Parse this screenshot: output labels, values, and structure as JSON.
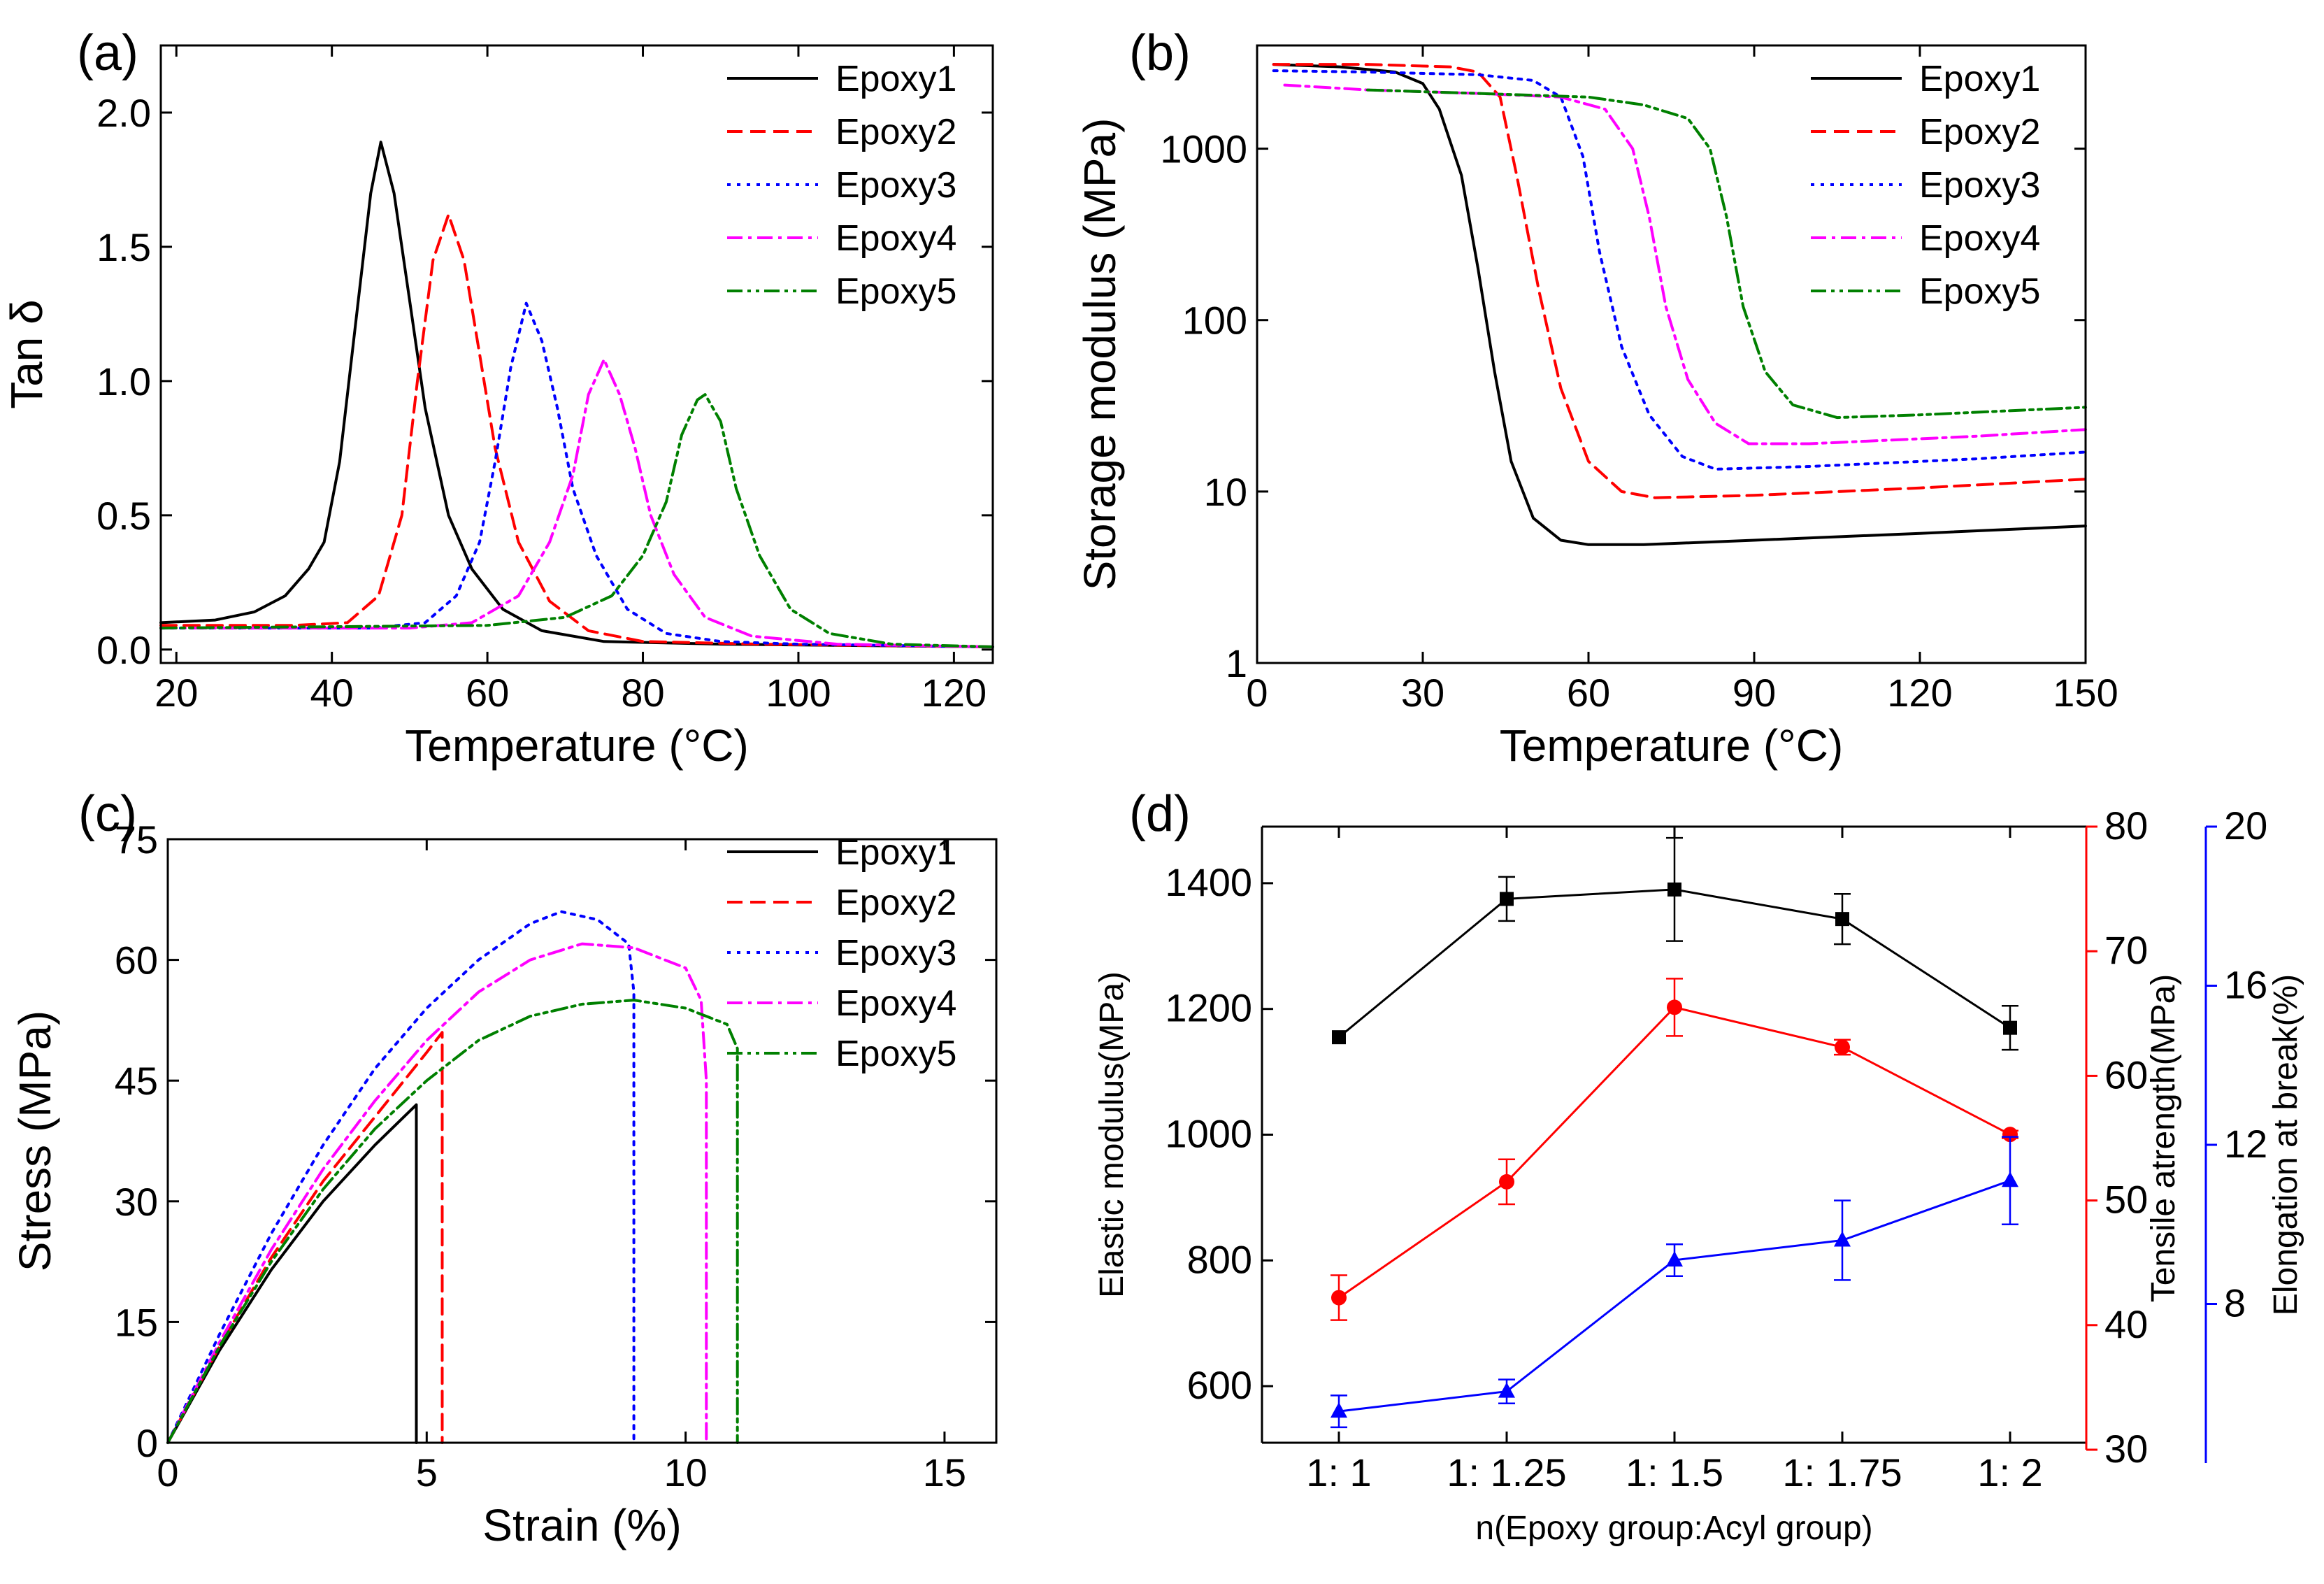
{
  "chart_data": [
    {
      "panel": "(a)",
      "type": "line",
      "xlabel": "Temperature (°C)",
      "ylabel": "Tan δ",
      "xlim": [
        18,
        125
      ],
      "ylim": [
        -0.05,
        2.25
      ],
      "xticks": [
        "20",
        "40",
        "60",
        "80",
        "100",
        "120"
      ],
      "yticks": [
        "0.0",
        "0.5",
        "1.0",
        "1.5",
        "2.0"
      ],
      "legend_position": "top-right",
      "series": [
        {
          "name": "Epoxy1",
          "color": "#000000",
          "dash": "solid",
          "points": [
            [
              18,
              0.1
            ],
            [
              25,
              0.11
            ],
            [
              30,
              0.14
            ],
            [
              34,
              0.2
            ],
            [
              37,
              0.3
            ],
            [
              39,
              0.4
            ],
            [
              41,
              0.7
            ],
            [
              43,
              1.2
            ],
            [
              45,
              1.7
            ],
            [
              46.3,
              1.89
            ],
            [
              48,
              1.7
            ],
            [
              50,
              1.3
            ],
            [
              52,
              0.9
            ],
            [
              55,
              0.5
            ],
            [
              58,
              0.3
            ],
            [
              62,
              0.15
            ],
            [
              67,
              0.07
            ],
            [
              75,
              0.03
            ],
            [
              90,
              0.02
            ],
            [
              125,
              0.01
            ]
          ]
        },
        {
          "name": "Epoxy2",
          "color": "#ff0000",
          "dash": "dashed",
          "points": [
            [
              18,
              0.09
            ],
            [
              35,
              0.09
            ],
            [
              42,
              0.1
            ],
            [
              46,
              0.2
            ],
            [
              49,
              0.5
            ],
            [
              51,
              1.0
            ],
            [
              53,
              1.45
            ],
            [
              55,
              1.62
            ],
            [
              57,
              1.45
            ],
            [
              59,
              1.1
            ],
            [
              61,
              0.75
            ],
            [
              64,
              0.4
            ],
            [
              68,
              0.18
            ],
            [
              73,
              0.07
            ],
            [
              80,
              0.03
            ],
            [
              95,
              0.02
            ],
            [
              125,
              0.01
            ]
          ]
        },
        {
          "name": "Epoxy3",
          "color": "#0000ff",
          "dash": "dotted",
          "points": [
            [
              18,
              0.08
            ],
            [
              45,
              0.08
            ],
            [
              52,
              0.1
            ],
            [
              56,
              0.2
            ],
            [
              59,
              0.4
            ],
            [
              61,
              0.7
            ],
            [
              63,
              1.05
            ],
            [
              65,
              1.29
            ],
            [
              67,
              1.15
            ],
            [
              69,
              0.9
            ],
            [
              71,
              0.6
            ],
            [
              74,
              0.35
            ],
            [
              78,
              0.15
            ],
            [
              83,
              0.06
            ],
            [
              90,
              0.03
            ],
            [
              100,
              0.02
            ],
            [
              125,
              0.01
            ]
          ]
        },
        {
          "name": "Epoxy4",
          "color": "#ff00ff",
          "dash": "dashdot",
          "points": [
            [
              18,
              0.08
            ],
            [
              50,
              0.08
            ],
            [
              58,
              0.1
            ],
            [
              64,
              0.2
            ],
            [
              68,
              0.4
            ],
            [
              71,
              0.65
            ],
            [
              73,
              0.95
            ],
            [
              75,
              1.08
            ],
            [
              77,
              0.95
            ],
            [
              79,
              0.75
            ],
            [
              81,
              0.5
            ],
            [
              84,
              0.28
            ],
            [
              88,
              0.12
            ],
            [
              94,
              0.05
            ],
            [
              105,
              0.02
            ],
            [
              125,
              0.01
            ]
          ]
        },
        {
          "name": "Epoxy5",
          "color": "#008000",
          "dash": "dashdotdot",
          "points": [
            [
              18,
              0.08
            ],
            [
              60,
              0.09
            ],
            [
              70,
              0.12
            ],
            [
              76,
              0.2
            ],
            [
              80,
              0.35
            ],
            [
              83,
              0.55
            ],
            [
              85,
              0.8
            ],
            [
              87,
              0.93
            ],
            [
              88,
              0.95
            ],
            [
              90,
              0.85
            ],
            [
              92,
              0.6
            ],
            [
              95,
              0.35
            ],
            [
              99,
              0.15
            ],
            [
              104,
              0.06
            ],
            [
              112,
              0.02
            ],
            [
              125,
              0.01
            ]
          ]
        }
      ]
    },
    {
      "panel": "(b)",
      "type": "line",
      "xlabel": "Temperature (°C)",
      "ylabel": "Storage modulus (MPa)",
      "yscale": "log",
      "xlim": [
        0,
        150
      ],
      "ylim": [
        1,
        4000
      ],
      "xticks": [
        "0",
        "30",
        "60",
        "90",
        "120",
        "150"
      ],
      "yticks": [
        "1",
        "10",
        "100",
        "1000"
      ],
      "legend_position": "top-right",
      "series": [
        {
          "name": "Epoxy1",
          "color": "#000000",
          "dash": "solid",
          "points": [
            [
              3,
              3100
            ],
            [
              15,
              3000
            ],
            [
              25,
              2800
            ],
            [
              30,
              2400
            ],
            [
              33,
              1700
            ],
            [
              37,
              700
            ],
            [
              40,
              200
            ],
            [
              43,
              50
            ],
            [
              46,
              15
            ],
            [
              50,
              7
            ],
            [
              55,
              5.2
            ],
            [
              60,
              4.9
            ],
            [
              70,
              4.9
            ],
            [
              90,
              5.2
            ],
            [
              120,
              5.7
            ],
            [
              150,
              6.3
            ]
          ]
        },
        {
          "name": "Epoxy2",
          "color": "#ff0000",
          "dash": "dashed",
          "points": [
            [
              3,
              3100
            ],
            [
              20,
              3100
            ],
            [
              35,
              3000
            ],
            [
              40,
              2800
            ],
            [
              44,
              2000
            ],
            [
              47,
              700
            ],
            [
              51,
              150
            ],
            [
              55,
              40
            ],
            [
              60,
              15
            ],
            [
              66,
              10
            ],
            [
              72,
              9.2
            ],
            [
              90,
              9.5
            ],
            [
              120,
              10.5
            ],
            [
              150,
              11.8
            ]
          ]
        },
        {
          "name": "Epoxy3",
          "color": "#0000ff",
          "dash": "dotted",
          "points": [
            [
              3,
              2850
            ],
            [
              20,
              2800
            ],
            [
              40,
              2700
            ],
            [
              50,
              2500
            ],
            [
              55,
              2000
            ],
            [
              59,
              900
            ],
            [
              62,
              250
            ],
            [
              66,
              70
            ],
            [
              71,
              28
            ],
            [
              77,
              16
            ],
            [
              83,
              13.5
            ],
            [
              100,
              14
            ],
            [
              130,
              15.5
            ],
            [
              150,
              17
            ]
          ]
        },
        {
          "name": "Epoxy4",
          "color": "#ff00ff",
          "dash": "dashdot",
          "points": [
            [
              5,
              2350
            ],
            [
              20,
              2200
            ],
            [
              40,
              2100
            ],
            [
              55,
              2000
            ],
            [
              63,
              1700
            ],
            [
              68,
              1000
            ],
            [
              71,
              400
            ],
            [
              74,
              120
            ],
            [
              78,
              45
            ],
            [
              83,
              25
            ],
            [
              89,
              19
            ],
            [
              100,
              19
            ],
            [
              130,
              21
            ],
            [
              150,
              23
            ]
          ]
        },
        {
          "name": "Epoxy5",
          "color": "#008000",
          "dash": "dashdotdot",
          "points": [
            [
              20,
              2200
            ],
            [
              40,
              2100
            ],
            [
              60,
              2000
            ],
            [
              70,
              1800
            ],
            [
              78,
              1500
            ],
            [
              82,
              1000
            ],
            [
              85,
              400
            ],
            [
              88,
              120
            ],
            [
              92,
              50
            ],
            [
              97,
              32
            ],
            [
              105,
              27
            ],
            [
              120,
              28
            ],
            [
              150,
              31
            ]
          ]
        }
      ]
    },
    {
      "panel": "(c)",
      "type": "line",
      "xlabel": "Strain (%)",
      "ylabel": "Stress (MPa)",
      "xlim": [
        0,
        16
      ],
      "ylim": [
        0,
        75
      ],
      "xticks": [
        "0",
        "5",
        "10",
        "15"
      ],
      "yticks": [
        "0",
        "15",
        "30",
        "45",
        "60",
        "75"
      ],
      "legend_position": "top-right",
      "series": [
        {
          "name": "Epoxy1",
          "color": "#000000",
          "dash": "solid",
          "points": [
            [
              0,
              0
            ],
            [
              1,
              11.5
            ],
            [
              2,
              21.5
            ],
            [
              3,
              30
            ],
            [
              4,
              37
            ],
            [
              4.8,
              42
            ],
            [
              4.8,
              0
            ]
          ]
        },
        {
          "name": "Epoxy2",
          "color": "#ff0000",
          "dash": "dashed",
          "points": [
            [
              0,
              0
            ],
            [
              1,
              12
            ],
            [
              2,
              23
            ],
            [
              3,
              32.5
            ],
            [
              4,
              40.5
            ],
            [
              5,
              48.5
            ],
            [
              5.3,
              51
            ],
            [
              5.3,
              0
            ]
          ]
        },
        {
          "name": "Epoxy3",
          "color": "#0000ff",
          "dash": "dotted",
          "points": [
            [
              0,
              0
            ],
            [
              1,
              13.5
            ],
            [
              2,
              26
            ],
            [
              3,
              37
            ],
            [
              4,
              46.5
            ],
            [
              5,
              54
            ],
            [
              6,
              60
            ],
            [
              7,
              64.5
            ],
            [
              7.6,
              66
            ],
            [
              8.3,
              65
            ],
            [
              8.9,
              62
            ],
            [
              9,
              56
            ],
            [
              9,
              0
            ]
          ]
        },
        {
          "name": "Epoxy4",
          "color": "#ff00ff",
          "dash": "dashdot",
          "points": [
            [
              0,
              0
            ],
            [
              1,
              12.5
            ],
            [
              2,
              24
            ],
            [
              3,
              34
            ],
            [
              4,
              42.5
            ],
            [
              5,
              50
            ],
            [
              6,
              56
            ],
            [
              7,
              60
            ],
            [
              8,
              62
            ],
            [
              9,
              61.5
            ],
            [
              10,
              59
            ],
            [
              10.3,
              55
            ],
            [
              10.4,
              45
            ],
            [
              10.4,
              0
            ]
          ]
        },
        {
          "name": "Epoxy5",
          "color": "#008000",
          "dash": "dashdotdot",
          "points": [
            [
              0,
              0
            ],
            [
              1,
              12
            ],
            [
              2,
              22.5
            ],
            [
              3,
              31.5
            ],
            [
              4,
              39
            ],
            [
              5,
              45
            ],
            [
              6,
              50
            ],
            [
              7,
              53
            ],
            [
              8,
              54.5
            ],
            [
              9,
              55
            ],
            [
              10,
              54
            ],
            [
              10.8,
              52
            ],
            [
              11,
              49
            ],
            [
              11,
              0
            ]
          ]
        }
      ]
    },
    {
      "panel": "(d)",
      "type": "line",
      "xlabel": "n(Epoxy group:Acyl group)",
      "categories": [
        "1: 1",
        "1: 1.25",
        "1: 1.5",
        "1: 1.75",
        "1: 2"
      ],
      "axes": [
        {
          "label": "Elastic modulus(MPa)",
          "color": "#000000",
          "lim": [
            510,
            1490
          ],
          "ticks": [
            "600",
            "800",
            "1000",
            "1200",
            "1400"
          ]
        },
        {
          "label": "Tensile atrength(MPa)",
          "color": "#ff0000",
          "lim": [
            30,
            80
          ],
          "ticks": [
            "30",
            "40",
            "50",
            "60",
            "70",
            "80"
          ]
        },
        {
          "label": "Elongation at break(%)",
          "color": "#0000ff",
          "lim": [
            4,
            20
          ],
          "ticks": [
            "8",
            "12",
            "16",
            "20"
          ]
        }
      ],
      "series": [
        {
          "name": "Elastic modulus",
          "axis": 0,
          "color": "#000000",
          "marker": "square",
          "values": [
            1155,
            1375,
            1390,
            1343,
            1170
          ],
          "errors": [
            0,
            35,
            82,
            40,
            35
          ]
        },
        {
          "name": "Tensile strength",
          "axis": 1,
          "color": "#ff0000",
          "marker": "circle",
          "values": [
            42.2,
            51.5,
            65.5,
            62.3,
            55.3
          ],
          "errors": [
            1.8,
            1.8,
            2.3,
            0.6,
            0.3
          ]
        },
        {
          "name": "Elongation at break",
          "axis": 2,
          "color": "#0000ff",
          "marker": "triangle",
          "values": [
            5.3,
            5.8,
            9.1,
            9.6,
            11.1
          ],
          "errors": [
            0.4,
            0.3,
            0.4,
            1.0,
            1.1
          ]
        }
      ]
    }
  ]
}
